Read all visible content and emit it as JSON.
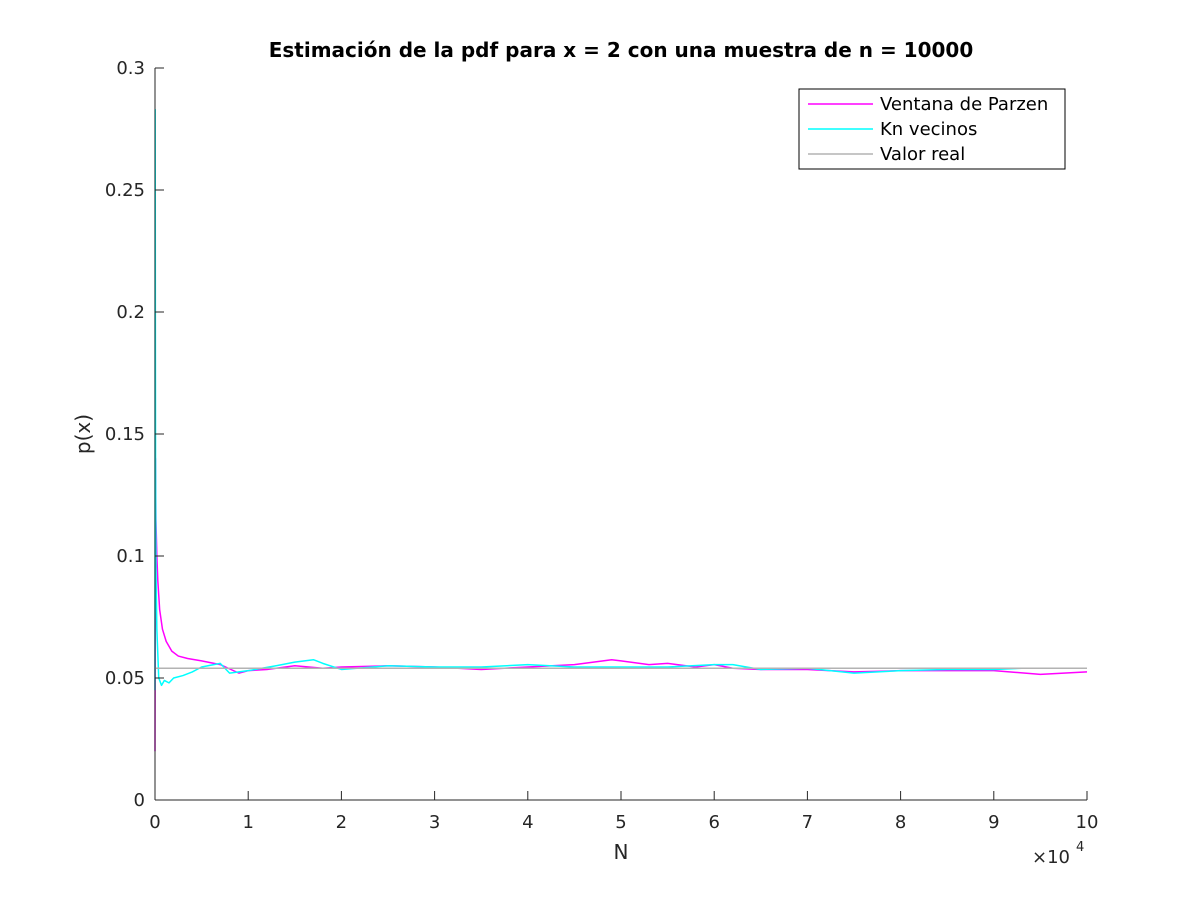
{
  "chart_data": {
    "type": "line",
    "title": "Estimación de la pdf para x = 2 con una muestra de n = 10000",
    "xlabel": "N",
    "ylabel": "p(x)",
    "x_exponent_prefix": "×10",
    "x_exponent_power": "4",
    "xlim": [
      0,
      10
    ],
    "ylim": [
      0,
      0.3
    ],
    "xticks": [
      0,
      1,
      2,
      3,
      4,
      5,
      6,
      7,
      8,
      9,
      10
    ],
    "xtick_labels": [
      "0",
      "1",
      "2",
      "3",
      "4",
      "5",
      "6",
      "7",
      "8",
      "9",
      "10"
    ],
    "yticks": [
      0,
      0.05,
      0.1,
      0.15,
      0.2,
      0.25,
      0.3
    ],
    "ytick_labels": [
      "0",
      "0.05",
      "0.1",
      "0.15",
      "0.2",
      "0.25",
      "0.3"
    ],
    "grid": false,
    "legend_position": "top-right",
    "series": [
      {
        "name": "Ventana de Parzen",
        "color": "#ff00ff",
        "x": [
          0,
          0.005,
          0.01,
          0.02,
          0.03,
          0.05,
          0.08,
          0.12,
          0.18,
          0.25,
          0.35,
          0.5,
          0.7,
          0.9,
          1.0,
          1.2,
          1.5,
          1.8,
          2.0,
          2.5,
          3.0,
          3.5,
          4.0,
          4.5,
          4.9,
          5.0,
          5.3,
          5.5,
          5.8,
          6.0,
          6.2,
          6.5,
          7.0,
          7.5,
          8.0,
          8.5,
          9.0,
          9.5,
          10.0
        ],
        "y": [
          0.02,
          0.14,
          0.115,
          0.1,
          0.09,
          0.078,
          0.07,
          0.065,
          0.061,
          0.059,
          0.058,
          0.057,
          0.0555,
          0.052,
          0.053,
          0.0535,
          0.055,
          0.054,
          0.0545,
          0.055,
          0.0545,
          0.0535,
          0.0545,
          0.0555,
          0.0575,
          0.057,
          0.0555,
          0.056,
          0.0545,
          0.0555,
          0.054,
          0.0535,
          0.0535,
          0.0525,
          0.053,
          0.053,
          0.053,
          0.0515,
          0.0525
        ]
      },
      {
        "name": "Kn vecinos",
        "color": "#00ffff",
        "x": [
          0,
          0.002,
          0.004,
          0.006,
          0.01,
          0.02,
          0.04,
          0.07,
          0.1,
          0.15,
          0.2,
          0.3,
          0.4,
          0.5,
          0.7,
          0.8,
          1.0,
          1.3,
          1.5,
          1.7,
          1.8,
          2.0,
          2.5,
          3.0,
          3.5,
          4.0,
          4.5,
          5.0,
          5.5,
          6.0,
          6.2,
          6.5,
          7.0,
          7.5,
          8.0,
          8.5,
          9.0,
          9.3
        ],
        "y": [
          0.045,
          0.283,
          0.2,
          0.14,
          0.095,
          0.07,
          0.05,
          0.047,
          0.049,
          0.048,
          0.05,
          0.051,
          0.0525,
          0.0545,
          0.056,
          0.052,
          0.053,
          0.055,
          0.0565,
          0.0575,
          0.056,
          0.0535,
          0.055,
          0.0545,
          0.0545,
          0.0555,
          0.0545,
          0.0545,
          0.0545,
          0.0555,
          0.0555,
          0.0535,
          0.054,
          0.052,
          0.053,
          0.0535,
          0.0535,
          0.054
        ]
      },
      {
        "name": "Valor real",
        "color": "#b3b3b3",
        "x": [
          0,
          10
        ],
        "y": [
          0.054,
          0.054
        ]
      }
    ]
  }
}
